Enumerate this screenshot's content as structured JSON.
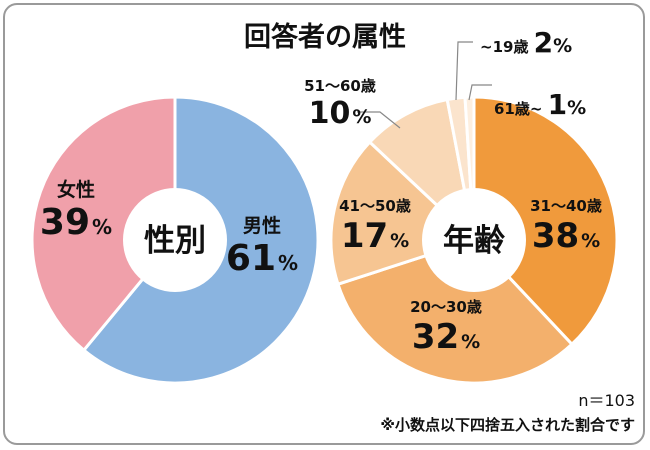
{
  "title": "回答者の属性",
  "n_label": "n＝103",
  "footnote": "※小数点以下四捨五入された割合です",
  "chart_data": [
    {
      "type": "pie",
      "center_label": "性別",
      "slices": [
        {
          "name": "男性",
          "value": 61,
          "unit": "%",
          "color": "#8ab4e0"
        },
        {
          "name": "女性",
          "value": 39,
          "unit": "%",
          "color": "#f0a0aa"
        }
      ]
    },
    {
      "type": "pie",
      "center_label": "年齢",
      "slices": [
        {
          "name": "31～40歳",
          "value": 38,
          "unit": "%",
          "color": "#f09a3c"
        },
        {
          "name": "20～30歳",
          "value": 32,
          "unit": "%",
          "color": "#f3b06c"
        },
        {
          "name": "41～50歳",
          "value": 17,
          "unit": "%",
          "color": "#f6c592"
        },
        {
          "name": "51～60歳",
          "value": 10,
          "unit": "%",
          "color": "#f9d8b6"
        },
        {
          "name": "~19歳",
          "value": 2,
          "unit": "%",
          "color": "#fbe4cd"
        },
        {
          "name": "61歳~",
          "value": 1,
          "unit": "%",
          "color": "#fdefe0"
        }
      ]
    }
  ]
}
